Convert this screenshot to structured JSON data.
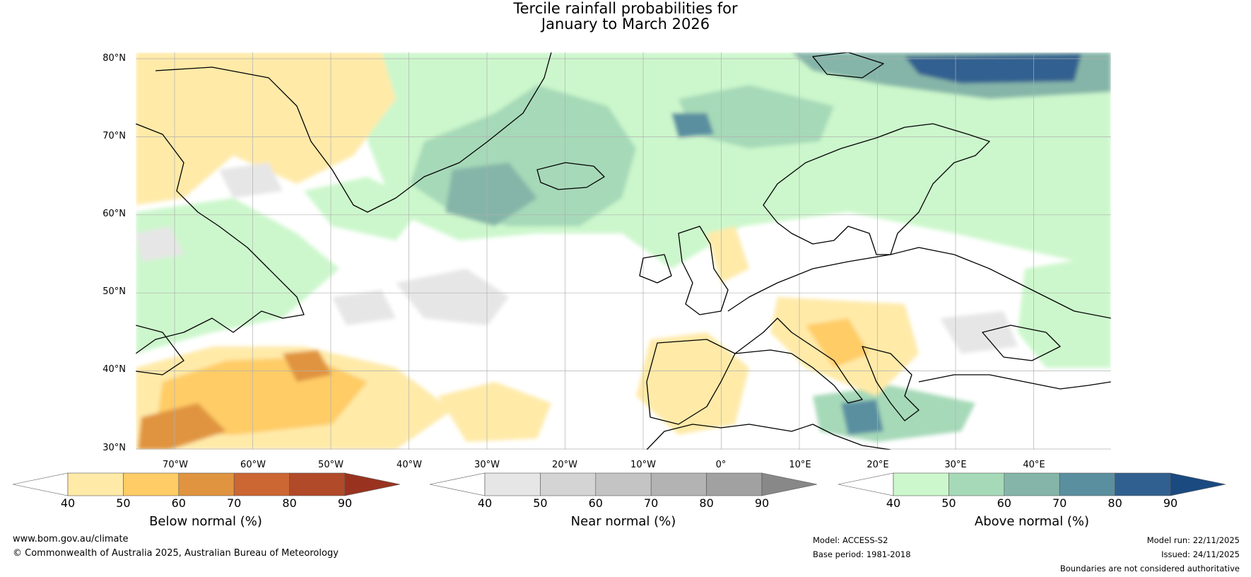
{
  "title": {
    "line1": "Tercile rainfall probabilities for",
    "line2": "January to March 2026"
  },
  "map": {
    "lat_labels": [
      "80°N",
      "70°N",
      "60°N",
      "50°N",
      "40°N",
      "30°N"
    ],
    "lon_labels": [
      "70°W",
      "60°W",
      "50°W",
      "40°W",
      "30°W",
      "20°W",
      "10°W",
      "0°",
      "10°E",
      "20°E",
      "30°E",
      "40°E"
    ]
  },
  "colorbars": [
    {
      "label": "Below normal (%)",
      "ticks": [
        "40",
        "50",
        "60",
        "70",
        "80",
        "90"
      ],
      "colors": [
        "#ffffff",
        "#ffeaa8",
        "#ffcc66",
        "#e09440",
        "#cc6633",
        "#b04a28",
        "#99331f"
      ]
    },
    {
      "label": "Near normal (%)",
      "ticks": [
        "40",
        "50",
        "60",
        "70",
        "80",
        "90"
      ],
      "colors": [
        "#ffffff",
        "#e6e6e6",
        "#d4d4d4",
        "#c4c4c4",
        "#b3b3b3",
        "#a1a1a1",
        "#888888"
      ]
    },
    {
      "label": "Above normal (%)",
      "ticks": [
        "40",
        "50",
        "60",
        "70",
        "80",
        "90"
      ],
      "colors": [
        "#ffffff",
        "#ccf7cc",
        "#a6d9b8",
        "#85b5a8",
        "#5a8fa0",
        "#306090",
        "#1a4a80"
      ]
    }
  ],
  "footer": {
    "website": "www.bom.gov.au/climate",
    "copyright": "© Commonwealth of Australia 2025, Australian Bureau of Meteorology",
    "model": "Model: ACCESS-S2",
    "base_period": "Base period: 1981-2018",
    "model_run": "Model run: 22/11/2025",
    "issued": "Issued: 24/11/2025",
    "disclaimer": "Boundaries are not considered authoritative"
  }
}
